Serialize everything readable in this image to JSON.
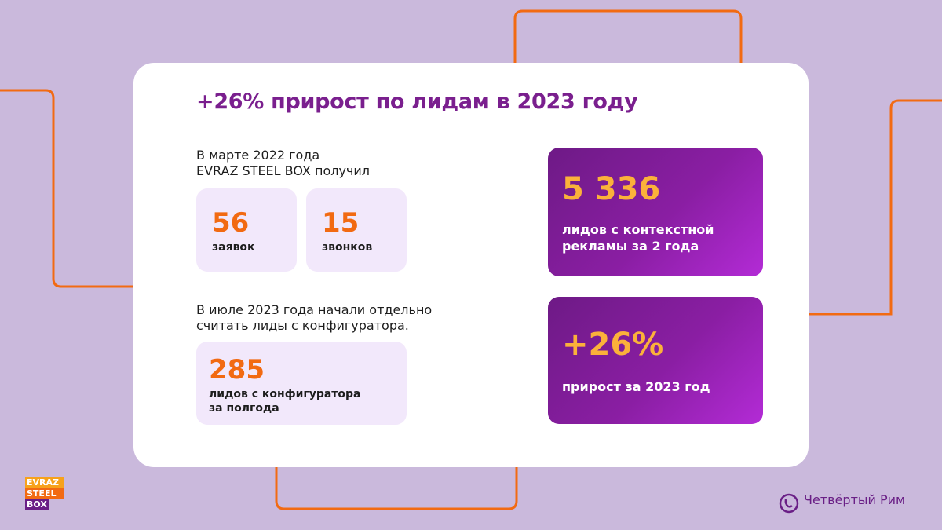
{
  "title": "+26% прирост по лидам в 2023 году",
  "left": {
    "intro_1": [
      "В марте 2022 года",
      "EVRAZ STEEL BOX получил"
    ],
    "stats": [
      {
        "number": "56",
        "label": "заявок"
      },
      {
        "number": "15",
        "label": "звонков"
      }
    ],
    "intro_2": [
      "В июле 2023 года начали отдельно",
      "считать лиды с конфигуратора."
    ],
    "configurator": {
      "number": "285",
      "label": [
        "лидов с конфигуратора",
        "за полгода"
      ]
    }
  },
  "right": [
    {
      "number": "5 336",
      "label": [
        "лидов с контекстной",
        "рекламы за 2 года"
      ]
    },
    {
      "number": "+26%",
      "label": [
        "прирост за 2023 год"
      ]
    }
  ],
  "logo": [
    "EVRAZ",
    "STEEL",
    "BOX"
  ],
  "brand": "Четвёртый Рим"
}
